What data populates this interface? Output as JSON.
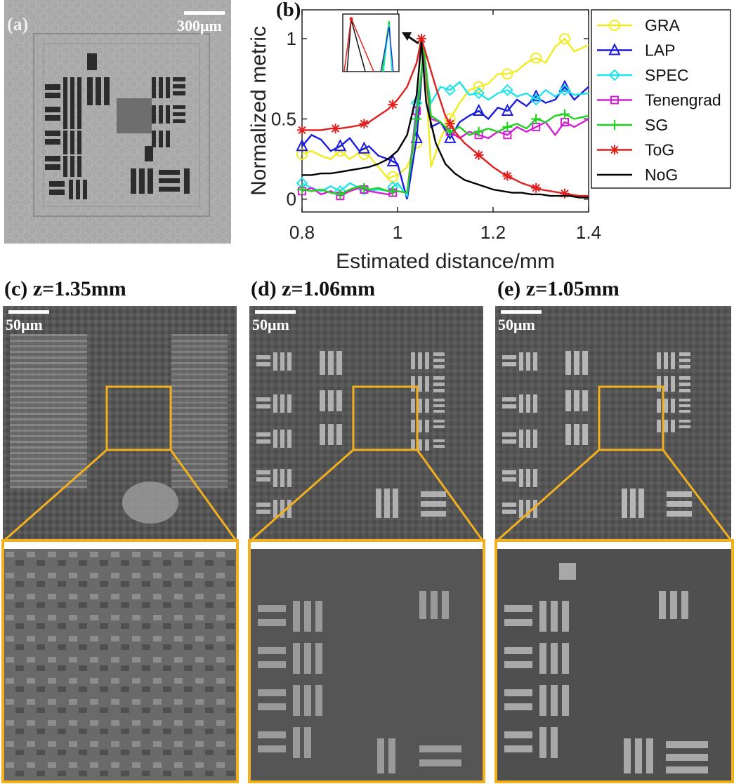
{
  "panels": {
    "a": {
      "letter": "(a)",
      "scale": "300μm"
    },
    "b": {
      "letter": "(b)"
    },
    "c": {
      "caption": "(c) z=1.35mm",
      "scale": "50μm"
    },
    "d": {
      "caption": "(d) z=1.06mm",
      "scale": "50μm"
    },
    "e": {
      "caption": "(e) z=1.05mm",
      "scale": "50μm"
    }
  },
  "colors": {
    "highlight_box": "#f2b01e",
    "GRA": "#f2ec1f",
    "LAP": "#1a1ae0",
    "SPEC": "#1fe3ea",
    "Tenengrad": "#d21fd2",
    "SG": "#1fd21f",
    "ToG": "#e0201f",
    "NoG": "#000000"
  },
  "chart_data": {
    "type": "line",
    "xlabel": "Estimated distance/mm",
    "ylabel": "Normalized metric",
    "xlim": [
      0.8,
      1.4
    ],
    "ylim": [
      -0.08,
      1.18
    ],
    "xticks": [
      0.8,
      1,
      1.2,
      1.4
    ],
    "yticks": [
      0,
      0.5,
      1
    ],
    "xtick_labels": [
      "0.8",
      "1",
      "1.2",
      "1.4"
    ],
    "ytick_labels": [
      "0",
      "0.5",
      "1"
    ],
    "legend_position": "outside-right",
    "inset": "zoomed peak region, arrow points to peak",
    "series": [
      {
        "name": "GRA",
        "marker": "circle",
        "x": [
          0.8,
          0.82,
          0.84,
          0.86,
          0.88,
          0.9,
          0.92,
          0.94,
          0.96,
          0.98,
          1.0,
          1.02,
          1.04,
          1.055,
          1.07,
          1.09,
          1.11,
          1.13,
          1.15,
          1.17,
          1.19,
          1.21,
          1.23,
          1.25,
          1.27,
          1.29,
          1.31,
          1.33,
          1.35,
          1.37,
          1.4
        ],
        "y": [
          0.28,
          0.3,
          0.27,
          0.25,
          0.3,
          0.25,
          0.29,
          0.27,
          0.2,
          0.13,
          0.15,
          0.2,
          0.35,
          0.95,
          0.2,
          0.38,
          0.5,
          0.6,
          0.68,
          0.7,
          0.72,
          0.78,
          0.78,
          0.8,
          0.85,
          0.88,
          0.85,
          0.95,
          1.0,
          0.92,
          0.96
        ],
        "marker_x": [
          0.8,
          0.88,
          0.93,
          0.99,
          1.04,
          1.11,
          1.17,
          1.23,
          1.29,
          1.35
        ]
      },
      {
        "name": "LAP",
        "marker": "triangle",
        "x": [
          0.8,
          0.82,
          0.84,
          0.86,
          0.88,
          0.9,
          0.92,
          0.94,
          0.96,
          0.98,
          1.0,
          1.02,
          1.04,
          1.055,
          1.07,
          1.09,
          1.11,
          1.13,
          1.15,
          1.17,
          1.19,
          1.21,
          1.23,
          1.25,
          1.27,
          1.29,
          1.31,
          1.33,
          1.35,
          1.37,
          1.4
        ],
        "y": [
          0.33,
          0.4,
          0.37,
          0.3,
          0.33,
          0.38,
          0.3,
          0.33,
          0.27,
          0.25,
          0.22,
          0.0,
          0.38,
          0.95,
          0.45,
          0.48,
          0.38,
          0.48,
          0.52,
          0.55,
          0.5,
          0.57,
          0.55,
          0.62,
          0.58,
          0.64,
          0.6,
          0.62,
          0.7,
          0.62,
          0.7
        ],
        "marker_x": [
          0.8,
          0.88,
          0.93,
          0.99,
          1.04,
          1.11,
          1.17,
          1.23,
          1.29,
          1.35
        ]
      },
      {
        "name": "SPEC",
        "marker": "diamond",
        "x": [
          0.8,
          0.82,
          0.84,
          0.86,
          0.88,
          0.9,
          0.92,
          0.94,
          0.96,
          0.98,
          1.0,
          1.02,
          1.04,
          1.055,
          1.07,
          1.09,
          1.11,
          1.13,
          1.15,
          1.17,
          1.19,
          1.21,
          1.23,
          1.25,
          1.27,
          1.29,
          1.31,
          1.33,
          1.35,
          1.37,
          1.4
        ],
        "y": [
          0.1,
          0.07,
          0.05,
          0.08,
          0.05,
          0.1,
          0.07,
          0.05,
          0.06,
          0.05,
          0.1,
          0.02,
          0.6,
          0.86,
          0.6,
          0.7,
          0.68,
          0.73,
          0.65,
          0.66,
          0.62,
          0.66,
          0.68,
          0.64,
          0.66,
          0.62,
          0.68,
          0.64,
          0.68,
          0.65,
          0.66
        ],
        "marker_x": [
          0.8,
          0.88,
          0.93,
          0.99,
          1.04,
          1.11,
          1.17,
          1.23,
          1.29,
          1.35
        ]
      },
      {
        "name": "Tenengrad",
        "marker": "square",
        "x": [
          0.8,
          0.82,
          0.84,
          0.86,
          0.88,
          0.9,
          0.92,
          0.94,
          0.96,
          0.98,
          1.0,
          1.02,
          1.04,
          1.055,
          1.07,
          1.09,
          1.11,
          1.13,
          1.15,
          1.17,
          1.19,
          1.21,
          1.23,
          1.25,
          1.27,
          1.29,
          1.31,
          1.33,
          1.35,
          1.37,
          1.4
        ],
        "y": [
          0.05,
          0.07,
          0.03,
          0.05,
          0.02,
          0.05,
          0.07,
          0.05,
          0.04,
          0.03,
          0.05,
          0.04,
          0.55,
          0.9,
          0.5,
          0.48,
          0.42,
          0.38,
          0.42,
          0.4,
          0.38,
          0.42,
          0.4,
          0.45,
          0.42,
          0.45,
          0.48,
          0.4,
          0.48,
          0.45,
          0.5
        ],
        "marker_x": [
          0.8,
          0.88,
          0.93,
          0.99,
          1.04,
          1.11,
          1.17,
          1.23,
          1.29,
          1.35
        ]
      },
      {
        "name": "SG",
        "marker": "plus",
        "x": [
          0.8,
          0.82,
          0.84,
          0.86,
          0.88,
          0.9,
          0.92,
          0.94,
          0.96,
          0.98,
          1.0,
          1.02,
          1.04,
          1.055,
          1.07,
          1.09,
          1.11,
          1.13,
          1.15,
          1.17,
          1.19,
          1.21,
          1.23,
          1.25,
          1.27,
          1.29,
          1.31,
          1.33,
          1.35,
          1.37,
          1.4
        ],
        "y": [
          0.06,
          0.05,
          0.06,
          0.04,
          0.03,
          0.06,
          0.08,
          0.06,
          0.07,
          0.05,
          0.05,
          0.04,
          0.5,
          0.95,
          0.52,
          0.48,
          0.42,
          0.45,
          0.4,
          0.42,
          0.44,
          0.42,
          0.45,
          0.47,
          0.44,
          0.5,
          0.48,
          0.52,
          0.53,
          0.5,
          0.52
        ],
        "marker_x": [
          0.8,
          0.88,
          0.93,
          0.99,
          1.04,
          1.11,
          1.17,
          1.23,
          1.29,
          1.35
        ]
      },
      {
        "name": "ToG",
        "marker": "asterisk",
        "x": [
          0.8,
          0.82,
          0.84,
          0.86,
          0.88,
          0.9,
          0.92,
          0.94,
          0.96,
          0.98,
          1.0,
          1.02,
          1.04,
          1.05,
          1.06,
          1.08,
          1.1,
          1.12,
          1.14,
          1.16,
          1.18,
          1.2,
          1.22,
          1.24,
          1.26,
          1.28,
          1.3,
          1.32,
          1.34,
          1.36,
          1.38,
          1.4
        ],
        "y": [
          0.43,
          0.43,
          0.43,
          0.44,
          0.44,
          0.45,
          0.46,
          0.48,
          0.52,
          0.56,
          0.62,
          0.7,
          0.85,
          1.0,
          0.9,
          0.7,
          0.52,
          0.42,
          0.35,
          0.3,
          0.25,
          0.2,
          0.16,
          0.13,
          0.1,
          0.08,
          0.06,
          0.05,
          0.04,
          0.03,
          0.02,
          0.02
        ],
        "marker_x": [
          0.8,
          0.87,
          0.93,
          0.99,
          1.05,
          1.11,
          1.17,
          1.23,
          1.29,
          1.35
        ]
      },
      {
        "name": "NoG",
        "marker": "none",
        "x": [
          0.8,
          0.82,
          0.84,
          0.86,
          0.88,
          0.9,
          0.92,
          0.94,
          0.96,
          0.98,
          1.0,
          1.02,
          1.04,
          1.05,
          1.06,
          1.08,
          1.1,
          1.12,
          1.14,
          1.16,
          1.18,
          1.2,
          1.22,
          1.24,
          1.26,
          1.28,
          1.3,
          1.32,
          1.34,
          1.36,
          1.38,
          1.4
        ],
        "y": [
          0.15,
          0.15,
          0.16,
          0.16,
          0.17,
          0.18,
          0.19,
          0.2,
          0.22,
          0.25,
          0.3,
          0.4,
          0.65,
          0.98,
          0.6,
          0.35,
          0.22,
          0.16,
          0.12,
          0.1,
          0.08,
          0.06,
          0.05,
          0.04,
          0.04,
          0.03,
          0.03,
          0.02,
          0.02,
          0.02,
          0.01,
          0.01
        ]
      }
    ]
  }
}
